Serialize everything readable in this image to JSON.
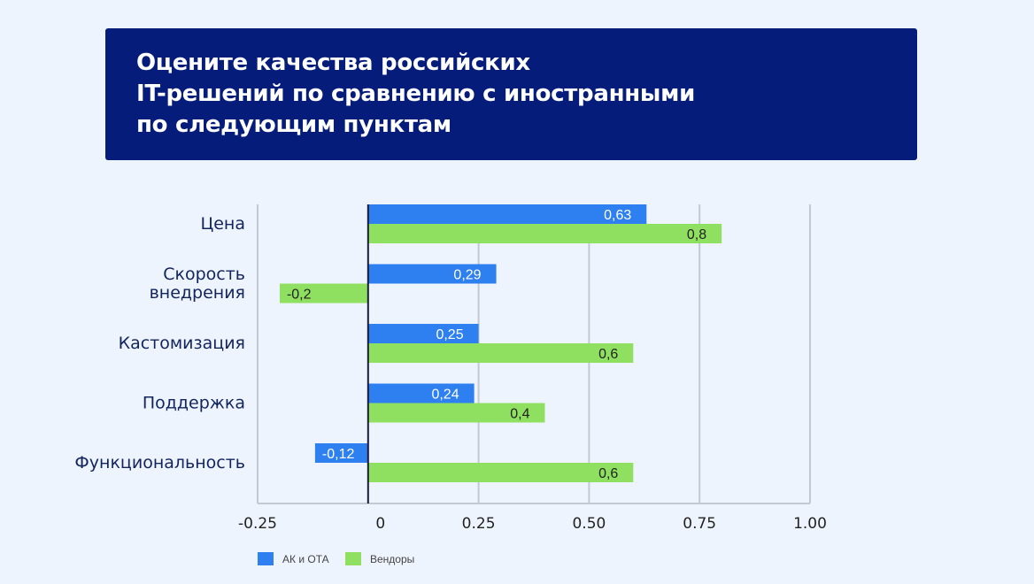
{
  "title": {
    "lines": [
      "Оцените качества российских",
      "IT-решений по сравнению с иностранными",
      "по следующим пунктам"
    ]
  },
  "chart_data": {
    "type": "bar",
    "orientation": "horizontal",
    "categories": [
      [
        "Цена"
      ],
      [
        "Скорость",
        "внедрения"
      ],
      [
        "Кастомизация"
      ],
      [
        "Поддержка"
      ],
      [
        "Функциональность"
      ]
    ],
    "series": [
      {
        "name": "АК и ОТА",
        "values": [
          0.63,
          0.29,
          0.25,
          0.24,
          -0.12
        ],
        "labels": [
          "0,63",
          "0,29",
          "0,25",
          "0,24",
          "-0,12"
        ],
        "color": "#2e7ff0",
        "label_color": "#ffffff"
      },
      {
        "name": "Вендоры",
        "values": [
          0.8,
          -0.2,
          0.6,
          0.4,
          0.6
        ],
        "labels": [
          "0,8",
          "-0,2",
          "0,6",
          "0,4",
          "0,6"
        ],
        "color": "#8fe060",
        "label_color": "#222222"
      }
    ],
    "xlim": [
      -0.25,
      1.0
    ],
    "xticks": [
      -0.25,
      0,
      0.25,
      0.5,
      0.75,
      1.0
    ],
    "xtick_labels": [
      "-0.25",
      "0",
      "0.25",
      "0.50",
      "0.75",
      "1.00"
    ],
    "grid": true,
    "legend": "bottom-left",
    "colors": {
      "axis": "#1a1a3a",
      "grid": "#c4c8d2",
      "category_text": "#12245e",
      "tick_text": "#222222"
    }
  }
}
